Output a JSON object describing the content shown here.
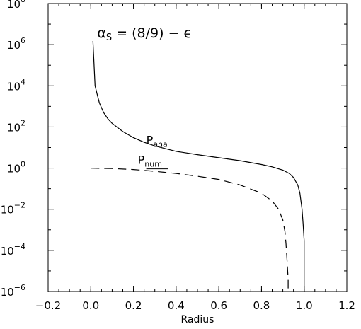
{
  "chart_data": {
    "type": "line",
    "title": "",
    "xlabel": "Radius",
    "ylabel": "",
    "xlim": [
      -0.2,
      1.2
    ],
    "ylim": [
      1e-06,
      100000000.0
    ],
    "yscale": "log",
    "grid": false,
    "x_ticks": [
      -0.2,
      0.0,
      0.2,
      0.4,
      0.6,
      0.8,
      1.0,
      1.2
    ],
    "x_tick_labels": [
      "−0.2",
      "0.0",
      "0.2",
      "0.4",
      "0.6",
      "0.8",
      "1.0",
      "1.2"
    ],
    "y_ticks": [
      {
        "value": 1e-06,
        "base": "10",
        "exp": "−6"
      },
      {
        "value": 0.0001,
        "base": "10",
        "exp": "−4"
      },
      {
        "value": 0.01,
        "base": "10",
        "exp": "−2"
      },
      {
        "value": 1.0,
        "base": "10",
        "exp": "0"
      },
      {
        "value": 100.0,
        "base": "10",
        "exp": "2"
      },
      {
        "value": 10000.0,
        "base": "10",
        "exp": "4"
      },
      {
        "value": 1000000.0,
        "base": "10",
        "exp": "6"
      },
      {
        "value": 100000000.0,
        "base": "10",
        "exp": "8"
      }
    ],
    "annotations": [
      {
        "text": "α",
        "sub": "S",
        "rest": " = (8/9) − ϵ",
        "at_x": 0.03,
        "at_y": 1000000.0
      }
    ],
    "series": [
      {
        "name": "P",
        "name_sub": "ana",
        "style": "solid",
        "label_at": {
          "x": 0.26,
          "y": 15
        },
        "x": [
          0.01,
          0.02,
          0.04,
          0.06,
          0.08,
          0.1,
          0.15,
          0.2,
          0.25,
          0.3,
          0.4,
          0.5,
          0.6,
          0.7,
          0.8,
          0.85,
          0.9,
          0.93,
          0.95,
          0.97,
          0.98,
          0.99,
          0.995,
          1.0,
          1.0
        ],
        "y": [
          1500000.0,
          10000.0,
          1500.0,
          500,
          250,
          150,
          60,
          30,
          18,
          12,
          6.5,
          4.5,
          3.2,
          2.3,
          1.5,
          1.15,
          0.8,
          0.55,
          0.35,
          0.15,
          0.06,
          0.01,
          0.002,
          0.0003,
          1e-06
        ]
      },
      {
        "name": "P",
        "name_sub": "num",
        "style": "dashed",
        "label_at": {
          "x": 0.22,
          "y": 1.6
        },
        "x": [
          0.0,
          0.1,
          0.2,
          0.3,
          0.4,
          0.5,
          0.6,
          0.7,
          0.8,
          0.85,
          0.88,
          0.9,
          0.91,
          0.915,
          0.92,
          0.925,
          0.925
        ],
        "y": [
          1.0,
          0.95,
          0.85,
          0.7,
          0.55,
          0.4,
          0.28,
          0.15,
          0.06,
          0.025,
          0.01,
          0.003,
          0.0008,
          0.0002,
          3e-05,
          4e-06,
          1e-06
        ]
      }
    ]
  }
}
